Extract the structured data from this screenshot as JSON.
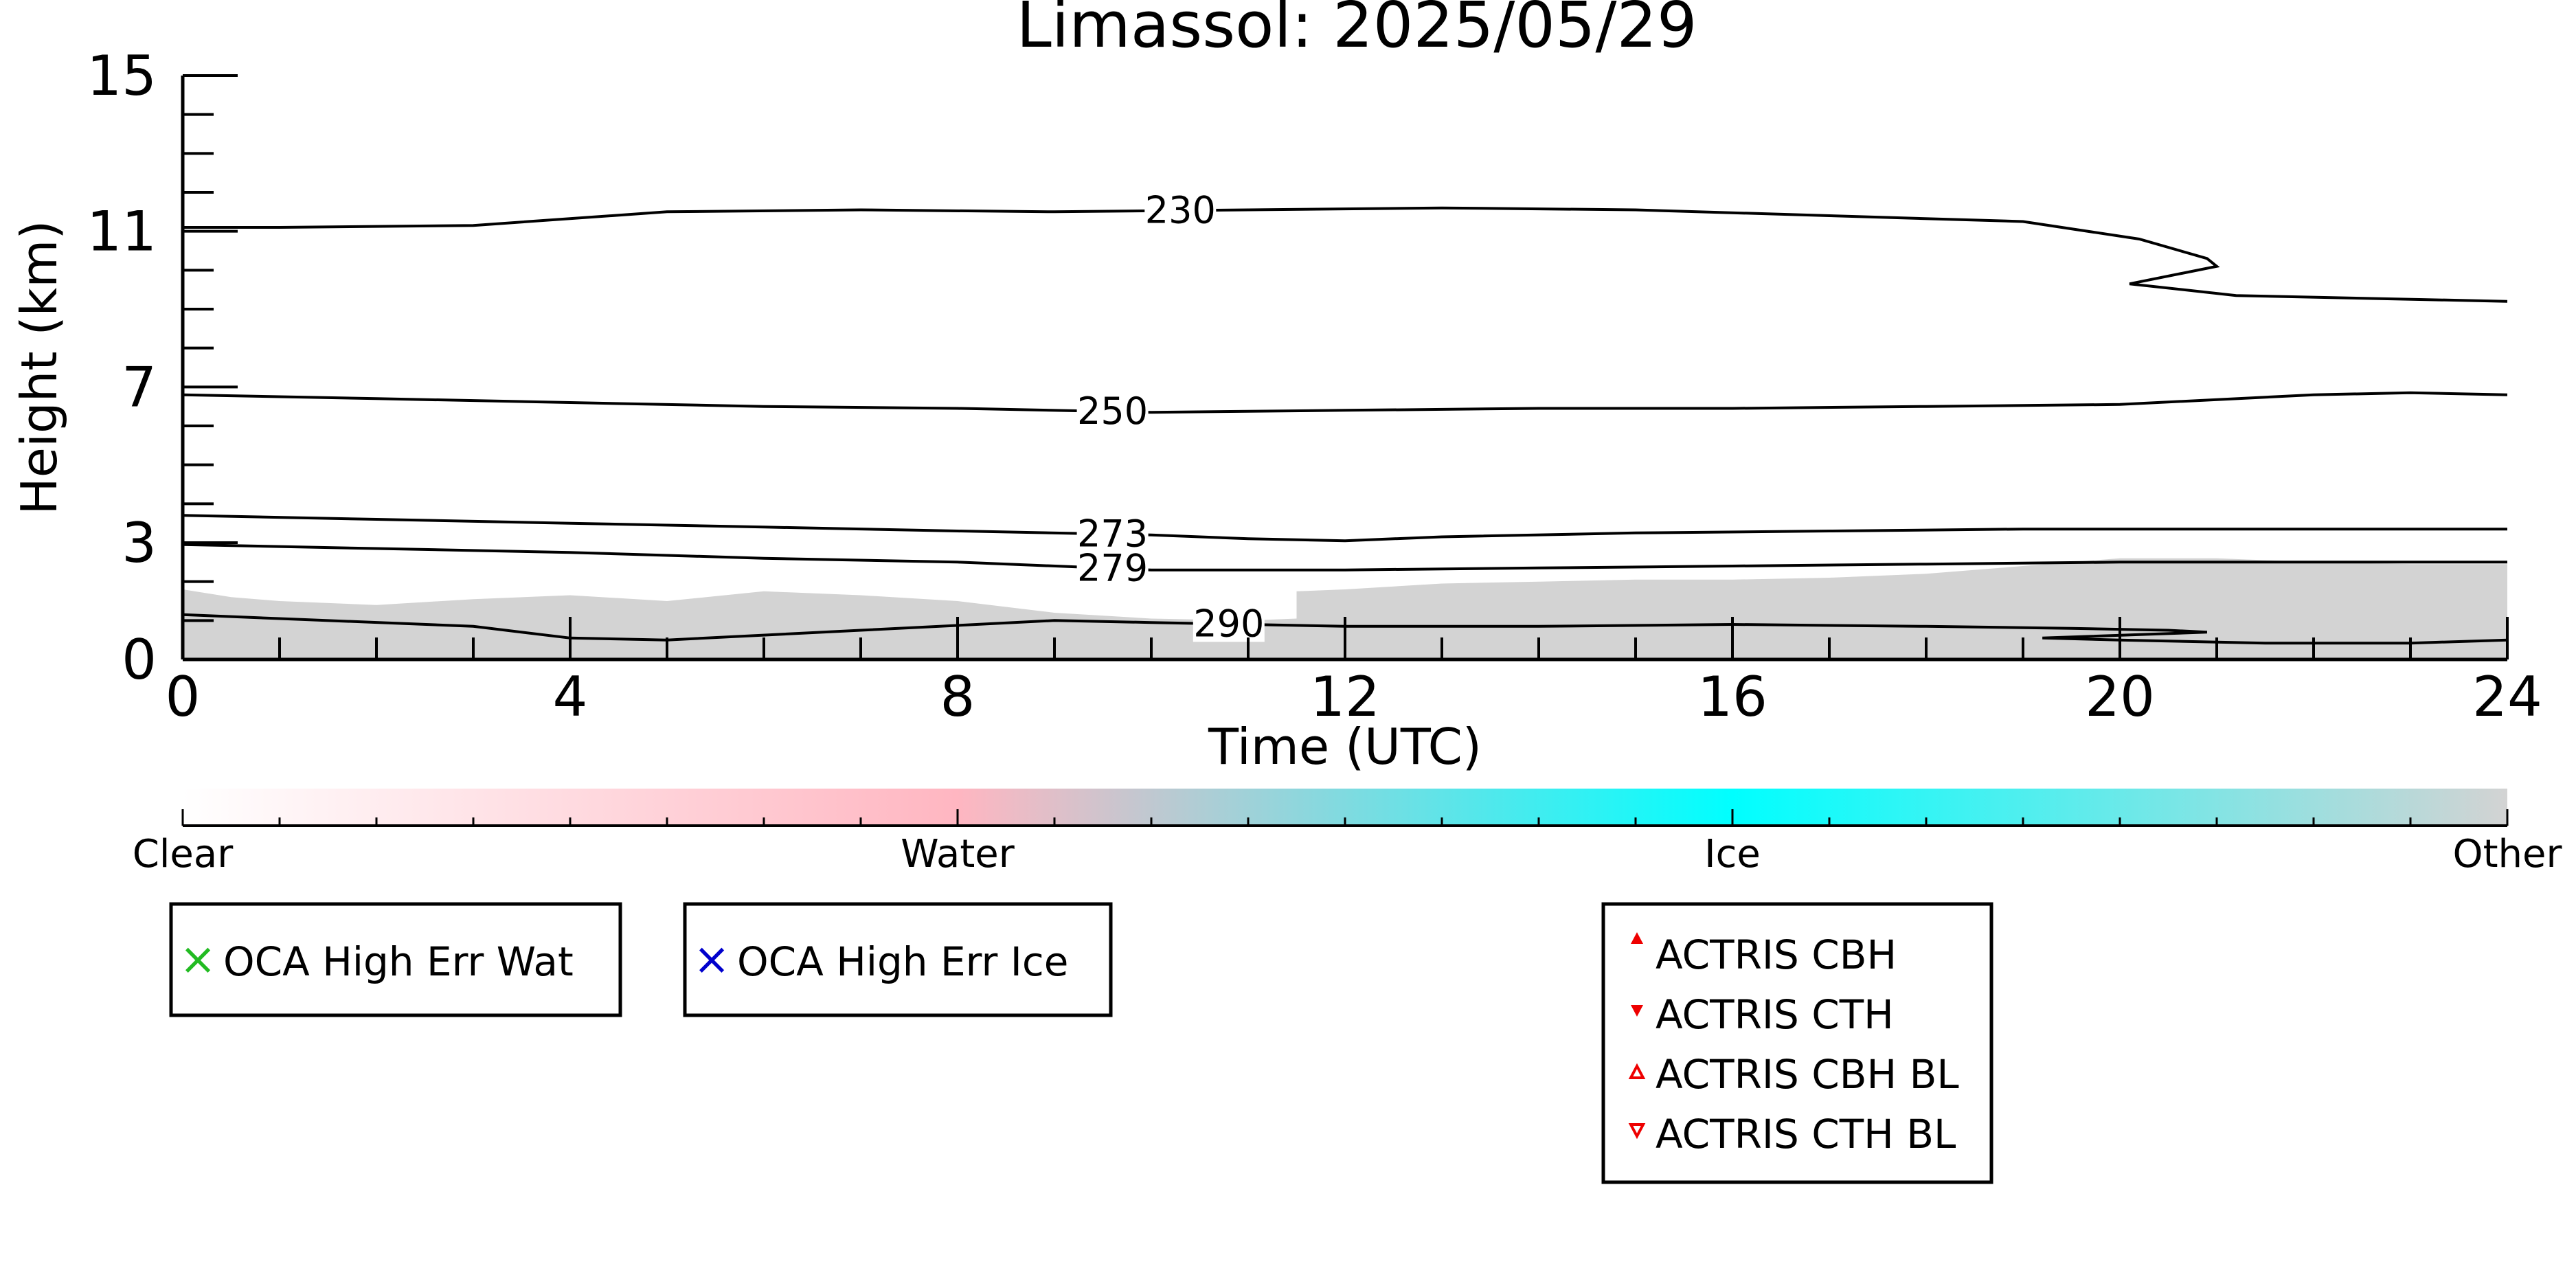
{
  "chart_data": {
    "type": "line",
    "title": "Limassol: 2025/05/29",
    "xlabel": "Time (UTC)",
    "ylabel": "Height (km)",
    "xlim": [
      0,
      24
    ],
    "ylim": [
      0,
      15
    ],
    "x_ticks": [
      "0",
      "4",
      "8",
      "12",
      "16",
      "20",
      "24"
    ],
    "y_ticks": [
      "0",
      "3",
      "7",
      "11",
      "15"
    ],
    "grid": false,
    "background_cloud_color": "#d3d3d3",
    "cloud_top_km": [
      [
        0,
        1.8
      ],
      [
        0.5,
        1.6
      ],
      [
        1,
        1.5
      ],
      [
        2,
        1.4
      ],
      [
        3,
        1.55
      ],
      [
        4,
        1.65
      ],
      [
        5,
        1.5
      ],
      [
        6,
        1.75
      ],
      [
        7,
        1.65
      ],
      [
        8,
        1.5
      ],
      [
        9,
        1.2
      ],
      [
        10,
        1.05
      ],
      [
        11,
        1.0
      ],
      [
        11.5,
        1.05
      ],
      [
        11.5,
        1.75
      ],
      [
        12,
        1.8
      ],
      [
        13,
        1.95
      ],
      [
        14,
        2.0
      ],
      [
        15,
        2.05
      ],
      [
        16,
        2.05
      ],
      [
        17,
        2.1
      ],
      [
        18,
        2.2
      ],
      [
        19,
        2.4
      ],
      [
        20,
        2.6
      ],
      [
        21,
        2.6
      ],
      [
        22,
        2.5
      ],
      [
        23,
        2.45
      ],
      [
        24,
        2.45
      ]
    ],
    "series": [
      {
        "name": "230",
        "label_at": 10.3,
        "points": [
          [
            0,
            11.1
          ],
          [
            1,
            11.1
          ],
          [
            3,
            11.15
          ],
          [
            5,
            11.5
          ],
          [
            7,
            11.55
          ],
          [
            9,
            11.5
          ],
          [
            11,
            11.55
          ],
          [
            13,
            11.6
          ],
          [
            15,
            11.55
          ],
          [
            17,
            11.4
          ],
          [
            19,
            11.25
          ],
          [
            20.2,
            10.8
          ],
          [
            20.9,
            10.3
          ],
          [
            21.0,
            10.1
          ],
          [
            20.1,
            9.65
          ],
          [
            21.2,
            9.35
          ],
          [
            24,
            9.2
          ]
        ]
      },
      {
        "name": "250",
        "label_at": 9.6,
        "points": [
          [
            0,
            6.8
          ],
          [
            2,
            6.7
          ],
          [
            4,
            6.6
          ],
          [
            6,
            6.5
          ],
          [
            8,
            6.45
          ],
          [
            10,
            6.35
          ],
          [
            12,
            6.4
          ],
          [
            14,
            6.45
          ],
          [
            16,
            6.45
          ],
          [
            18,
            6.5
          ],
          [
            20,
            6.55
          ],
          [
            22,
            6.8
          ],
          [
            23,
            6.85
          ],
          [
            24,
            6.8
          ]
        ]
      },
      {
        "name": "273",
        "label_at": 9.6,
        "points": [
          [
            0,
            3.7
          ],
          [
            2,
            3.6
          ],
          [
            4,
            3.5
          ],
          [
            6,
            3.4
          ],
          [
            8,
            3.3
          ],
          [
            10,
            3.2
          ],
          [
            11,
            3.1
          ],
          [
            12,
            3.05
          ],
          [
            13,
            3.15
          ],
          [
            15,
            3.25
          ],
          [
            17,
            3.3
          ],
          [
            19,
            3.35
          ],
          [
            21,
            3.35
          ],
          [
            24,
            3.35
          ]
        ]
      },
      {
        "name": "279",
        "label_at": 9.6,
        "points": [
          [
            0,
            2.95
          ],
          [
            2,
            2.85
          ],
          [
            4,
            2.75
          ],
          [
            6,
            2.6
          ],
          [
            8,
            2.5
          ],
          [
            10,
            2.3
          ],
          [
            12,
            2.3
          ],
          [
            14,
            2.35
          ],
          [
            16,
            2.4
          ],
          [
            18,
            2.45
          ],
          [
            20,
            2.5
          ],
          [
            22,
            2.5
          ],
          [
            24,
            2.5
          ]
        ]
      },
      {
        "name": "290",
        "label_at": 10.8,
        "points": [
          [
            0,
            1.15
          ],
          [
            1,
            1.05
          ],
          [
            3,
            0.85
          ],
          [
            4,
            0.55
          ],
          [
            5,
            0.5
          ],
          [
            7,
            0.75
          ],
          [
            9,
            1.0
          ],
          [
            10,
            0.95
          ],
          [
            12,
            0.85
          ],
          [
            14,
            0.85
          ],
          [
            16,
            0.9
          ],
          [
            18,
            0.85
          ],
          [
            19.5,
            0.8
          ],
          [
            20.5,
            0.75
          ],
          [
            20.9,
            0.7
          ],
          [
            19.2,
            0.55
          ],
          [
            20,
            0.5
          ],
          [
            21.5,
            0.42
          ],
          [
            23,
            0.42
          ],
          [
            24,
            0.5
          ]
        ]
      }
    ],
    "colorbar": {
      "labels": [
        "Clear",
        "Water",
        "Ice",
        "Other"
      ],
      "colors": [
        "#ffffff",
        "#ffb6c1",
        "#00ffff",
        "#d3d3d3"
      ]
    },
    "legends": [
      {
        "entries": [
          {
            "marker": "×",
            "color": "#22bb22",
            "label": "OCA High Err Wat"
          }
        ]
      },
      {
        "entries": [
          {
            "marker": "×",
            "color": "#0000cc",
            "label": "OCA High Err Ice"
          }
        ]
      },
      {
        "entries": [
          {
            "marker": "triangle-up-filled",
            "color": "#ee0000",
            "label": "ACTRIS CBH"
          },
          {
            "marker": "triangle-down-filled",
            "color": "#ee0000",
            "label": "ACTRIS CTH"
          },
          {
            "marker": "triangle-up-open",
            "color": "#ee0000",
            "label": "ACTRIS CBH BL"
          },
          {
            "marker": "triangle-down-open",
            "color": "#ee0000",
            "label": "ACTRIS CTH BL"
          }
        ]
      }
    ]
  }
}
